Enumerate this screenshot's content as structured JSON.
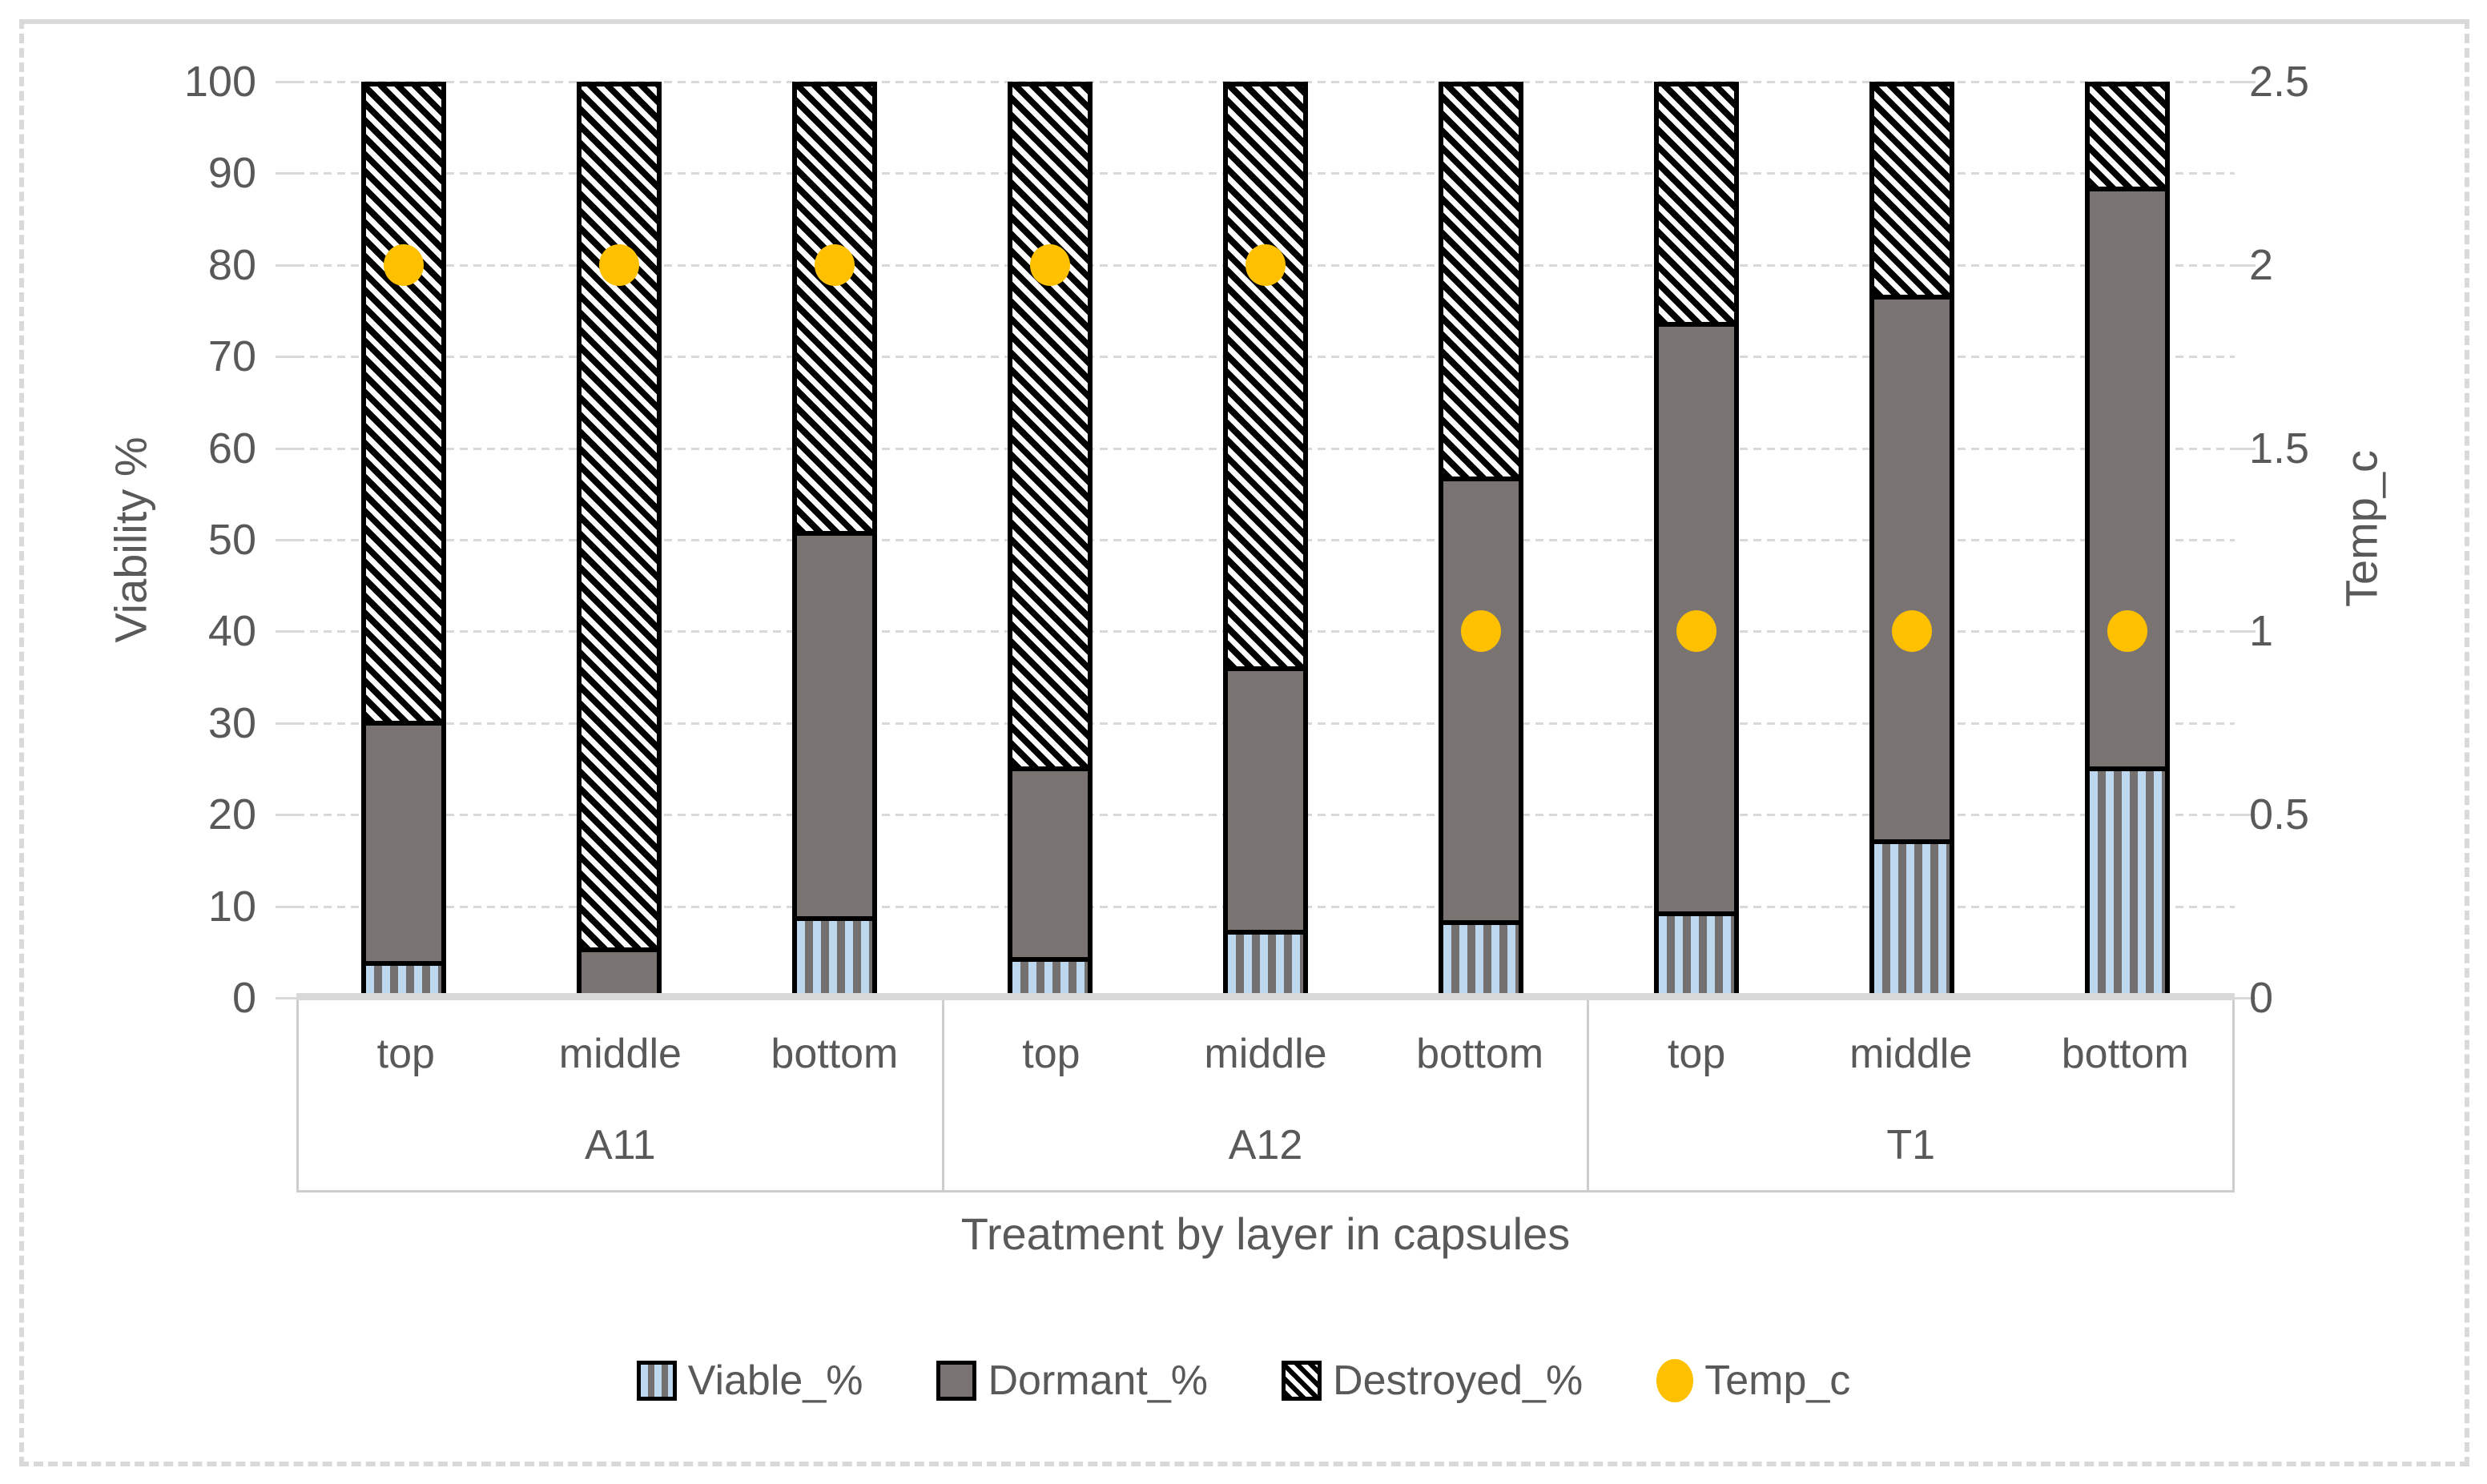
{
  "left_axis": {
    "title": "Viability %",
    "ticks": [
      "100",
      "90",
      "80",
      "70",
      "60",
      "50",
      "40",
      "30",
      "20",
      "10",
      "0"
    ],
    "min": 0,
    "max": 100
  },
  "right_axis": {
    "title": "Temp_c",
    "ticks": [
      "2.5",
      "2",
      "1.5",
      "1",
      "0.5",
      "0"
    ],
    "min": 0,
    "max": 2.5
  },
  "x_axis": {
    "title": "Treatment by layer in capsules"
  },
  "legend": {
    "items": [
      {
        "label": "Viable_%",
        "swatch": "viable"
      },
      {
        "label": "Dormant_%",
        "swatch": "dormant"
      },
      {
        "label": "Destroyed_%",
        "swatch": "destroyed"
      },
      {
        "label": "Temp_c",
        "swatch": "temp"
      }
    ]
  },
  "colors": {
    "viable_fill": "#BDD7EE",
    "viable_stripe": "#757070",
    "dormant_fill": "#797471",
    "destroyed_foreground": "#000000",
    "destroyed_background": "#FFFFFF",
    "temp_dot": "#FFC000",
    "gridline": "#D9D9D9",
    "axis_text": "#595959",
    "bar_border": "#000000"
  },
  "chart_data": {
    "type": "bar",
    "subtype": "stacked-percent-with-scatter-overlay",
    "title": "",
    "xlabel": "Treatment by layer in capsules",
    "ylabel_left": "Viability %",
    "ylabel_right": "Temp_c",
    "left_ylim": [
      0,
      100
    ],
    "right_ylim": [
      0,
      2.5
    ],
    "grid": true,
    "legend_position": "bottom",
    "groups": [
      {
        "name": "A11",
        "layers": [
          "top",
          "middle",
          "bottom"
        ]
      },
      {
        "name": "A12",
        "layers": [
          "top",
          "middle",
          "bottom"
        ]
      },
      {
        "name": "T1",
        "layers": [
          "top",
          "middle",
          "bottom"
        ]
      }
    ],
    "categories": [
      "A11 top",
      "A11 middle",
      "A11 bottom",
      "A12 top",
      "A12 middle",
      "A12 bottom",
      "T1 top",
      "T1 middle",
      "T1 bottom"
    ],
    "series": [
      {
        "name": "Viable_%",
        "type": "bar",
        "axis": "left",
        "values": [
          3.5,
          0,
          8.5,
          4,
          7,
          8,
          9,
          17,
          25
        ]
      },
      {
        "name": "Dormant_%",
        "type": "bar",
        "axis": "left",
        "values": [
          26.5,
          5,
          42.5,
          21,
          29,
          49,
          65,
          60,
          64
        ]
      },
      {
        "name": "Destroyed_%",
        "type": "bar",
        "axis": "left",
        "values": [
          70,
          95,
          49,
          75,
          64,
          43,
          26,
          23,
          11
        ]
      },
      {
        "name": "Temp_c",
        "type": "scatter",
        "axis": "right",
        "values": [
          2,
          2,
          2,
          2,
          2,
          1,
          1,
          1,
          1
        ]
      }
    ]
  }
}
